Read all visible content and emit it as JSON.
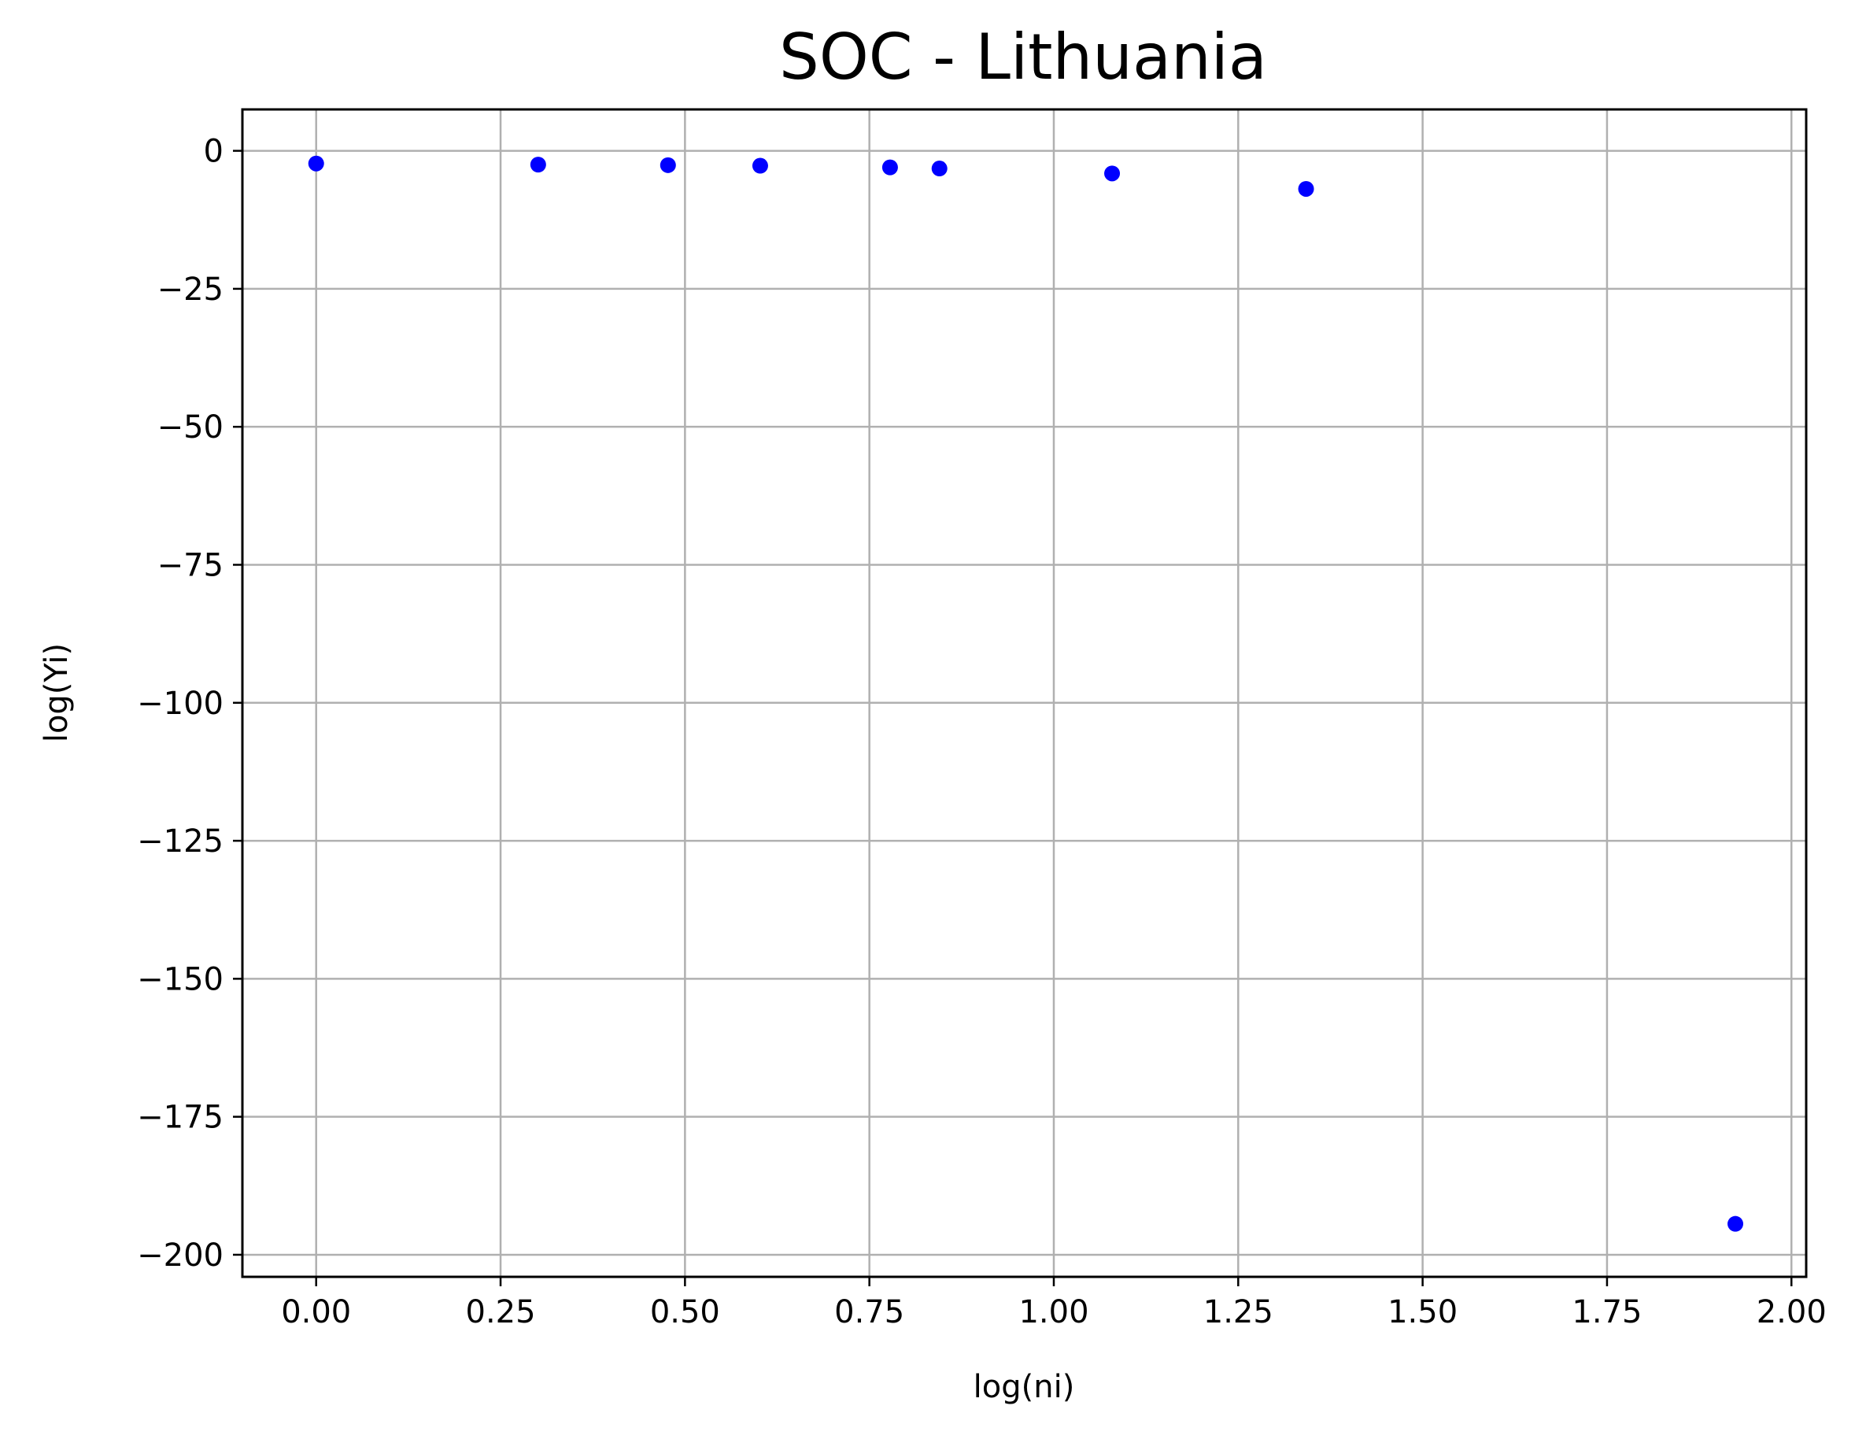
{
  "chart_data": {
    "type": "scatter",
    "title": "SOC - Lithuania",
    "xlabel": "log(ni)",
    "ylabel": "log(Yi)",
    "xlim": [
      -0.1,
      2.02
    ],
    "ylim": [
      -204,
      7.5
    ],
    "xticks": [
      0.0,
      0.25,
      0.5,
      0.75,
      1.0,
      1.25,
      1.5,
      1.75,
      2.0
    ],
    "xtick_labels": [
      "0.00",
      "0.25",
      "0.50",
      "0.75",
      "1.00",
      "1.25",
      "1.50",
      "1.75",
      "2.00"
    ],
    "yticks": [
      0,
      -25,
      -50,
      -75,
      -100,
      -125,
      -150,
      -175,
      -200
    ],
    "ytick_labels": [
      "0",
      "−25",
      "−50",
      "−75",
      "−100",
      "−125",
      "−150",
      "−175",
      "−200"
    ],
    "grid": true,
    "marker_color": "#0000ff",
    "points": [
      {
        "x": 0.0,
        "y": -2.3
      },
      {
        "x": 0.301,
        "y": -2.5
      },
      {
        "x": 0.477,
        "y": -2.6
      },
      {
        "x": 0.602,
        "y": -2.7
      },
      {
        "x": 0.778,
        "y": -3.0
      },
      {
        "x": 0.845,
        "y": -3.2
      },
      {
        "x": 1.079,
        "y": -4.1
      },
      {
        "x": 1.342,
        "y": -6.9
      },
      {
        "x": 1.924,
        "y": -194.4
      }
    ]
  }
}
